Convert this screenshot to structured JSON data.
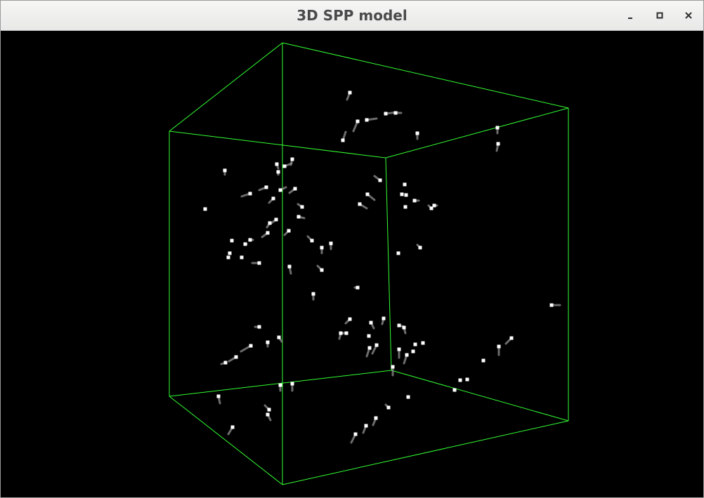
{
  "window": {
    "title": "3D SPP model",
    "controls": [
      {
        "name": "minimize-button",
        "icon": "minimize-icon"
      },
      {
        "name": "maximize-button",
        "icon": "maximize-icon"
      },
      {
        "name": "close-button",
        "icon": "close-icon"
      }
    ]
  },
  "scene": {
    "background_color": "#000000",
    "box_edge_color": "#33ff33",
    "particle_color": "#ffffff",
    "trail_color": "#888888"
  }
}
